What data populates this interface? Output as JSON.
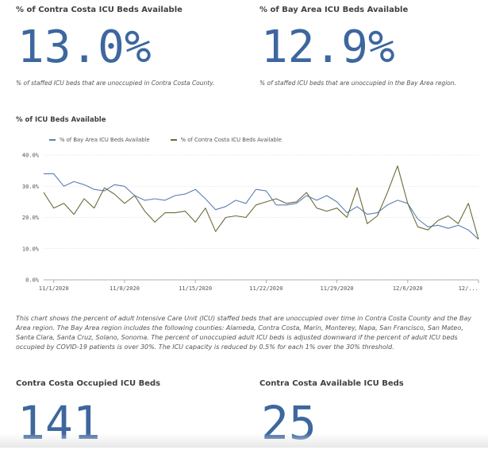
{
  "kpi_contra_pct": {
    "title": "% of Contra Costa ICU Beds Available",
    "value": "13.0%",
    "subtitle": "% of staffed ICU beds that are unoccupied in Contra Costa County."
  },
  "kpi_bay_pct": {
    "title": "% of Bay Area ICU Beds Available",
    "value": "12.9%",
    "subtitle": "% of staffed ICU beds that are unoccupied in the Bay Area region."
  },
  "chart_section": {
    "title": "% of ICU Beds Available"
  },
  "chart_data": {
    "type": "line",
    "y_ticks": [
      "0.0%",
      "10.0%",
      "20.0%",
      "30.0%",
      "40.0%"
    ],
    "ylim": [
      0,
      40
    ],
    "x_ticks": [
      "11/1/2020",
      "11/8/2020",
      "11/15/2020",
      "11/22/2020",
      "11/29/2020",
      "12/6/2020",
      "12/..."
    ],
    "x_start": "10/31/2020",
    "x_end": "12/13/2020",
    "grid": "horizontal",
    "legend_position": "top-left",
    "series": [
      {
        "name": "% of Bay Area ICU Beds Available",
        "color": "#5a7fb3",
        "values": [
          34.0,
          34.0,
          30.0,
          31.5,
          30.5,
          29.0,
          28.5,
          30.5,
          30.0,
          27.0,
          25.5,
          26.0,
          25.5,
          27.0,
          27.5,
          29.0,
          26.0,
          22.5,
          23.5,
          25.5,
          24.5,
          29.0,
          28.5,
          24.0,
          24.0,
          24.5,
          27.0,
          25.5,
          27.0,
          25.0,
          21.5,
          23.5,
          21.0,
          21.5,
          24.0,
          25.5,
          24.5,
          19.5,
          17.0,
          17.5,
          16.5,
          17.5,
          16.0,
          13.0
        ]
      },
      {
        "name": "% of Contra Costa ICU Beds Available",
        "color": "#6b6b3c",
        "values": [
          28.0,
          23.0,
          24.5,
          21.0,
          26.0,
          23.0,
          29.5,
          27.5,
          24.5,
          27.0,
          22.0,
          18.5,
          21.5,
          21.5,
          22.0,
          18.5,
          23.0,
          15.5,
          20.0,
          20.5,
          20.0,
          24.0,
          25.0,
          26.0,
          24.5,
          25.0,
          28.0,
          23.0,
          22.0,
          23.0,
          20.0,
          29.5,
          18.0,
          20.5,
          28.0,
          36.5,
          24.5,
          17.0,
          16.0,
          19.0,
          20.5,
          18.0,
          24.5,
          13.0
        ]
      }
    ]
  },
  "chart_description": "This chart shows the percent of adult Intensive Care Unit (ICU) staffed beds that are unoccupied over time in Contra Costa County and the Bay Area region. The Bay Area region includes the following counties: Alameda, Contra Costa, Marin, Monterey, Napa, San Francisco, San Mateo, Santa Clara, Santa Cruz, Solano, Sonoma. The percent of unoccupied adult ICU beds is adjusted downward if the percent of adult ICU beds occupied by COVID-19 patients is over 30%. The ICU capacity is reduced by 0.5% for each 1% over the 30% threshold.",
  "kpi_contra_occupied": {
    "title": "Contra Costa Occupied ICU Beds",
    "value": "141"
  },
  "kpi_contra_available": {
    "title": "Contra Costa Available ICU Beds",
    "value": "25"
  }
}
